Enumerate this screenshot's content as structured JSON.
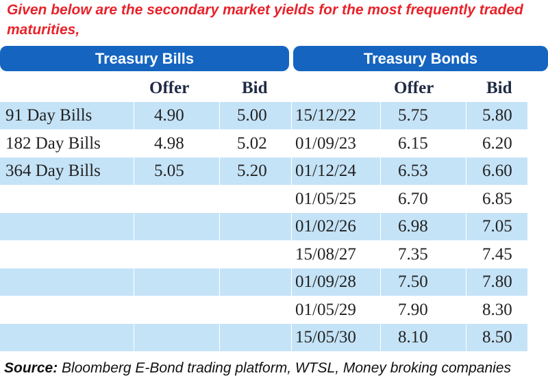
{
  "intro": "Given below are the secondary market yields for the most frequently traded maturities,",
  "headers": {
    "bills": "Treasury Bills",
    "bonds": "Treasury Bonds"
  },
  "columns": {
    "bills_offer": "Offer",
    "bills_bid": "Bid",
    "bonds_offer": "Offer",
    "bonds_bid": "Bid"
  },
  "rows": [
    {
      "bill": "91 Day Bills",
      "bill_offer": "4.90",
      "bill_bid": "5.00",
      "bond": "15/12/22",
      "bond_offer": "5.75",
      "bond_bid": "5.80"
    },
    {
      "bill": "182 Day Bills",
      "bill_offer": "4.98",
      "bill_bid": "5.02",
      "bond": "01/09/23",
      "bond_offer": "6.15",
      "bond_bid": "6.20"
    },
    {
      "bill": "364 Day Bills",
      "bill_offer": "5.05",
      "bill_bid": "5.20",
      "bond": "01/12/24",
      "bond_offer": "6.53",
      "bond_bid": "6.60"
    },
    {
      "bill": "",
      "bill_offer": "",
      "bill_bid": "",
      "bond": "01/05/25",
      "bond_offer": "6.70",
      "bond_bid": "6.85"
    },
    {
      "bill": "",
      "bill_offer": "",
      "bill_bid": "",
      "bond": "01/02/26",
      "bond_offer": "6.98",
      "bond_bid": "7.05"
    },
    {
      "bill": "",
      "bill_offer": "",
      "bill_bid": "",
      "bond": "15/08/27",
      "bond_offer": "7.35",
      "bond_bid": "7.45"
    },
    {
      "bill": "",
      "bill_offer": "",
      "bill_bid": "",
      "bond": "01/09/28",
      "bond_offer": "7.50",
      "bond_bid": "7.80"
    },
    {
      "bill": "",
      "bill_offer": "",
      "bill_bid": "",
      "bond": "01/05/29",
      "bond_offer": "7.90",
      "bond_bid": "8.30"
    },
    {
      "bill": "",
      "bill_offer": "",
      "bill_bid": "",
      "bond": "15/05/30",
      "bond_offer": "8.10",
      "bond_bid": "8.50"
    }
  ],
  "source": {
    "label": "Source:",
    "text": " Bloomberg E-Bond trading platform, WTSL, Money broking companies"
  },
  "colors": {
    "header_bg": "#1565c0",
    "row_shade": "#c5e3f7",
    "intro_text": "#e8222a"
  }
}
